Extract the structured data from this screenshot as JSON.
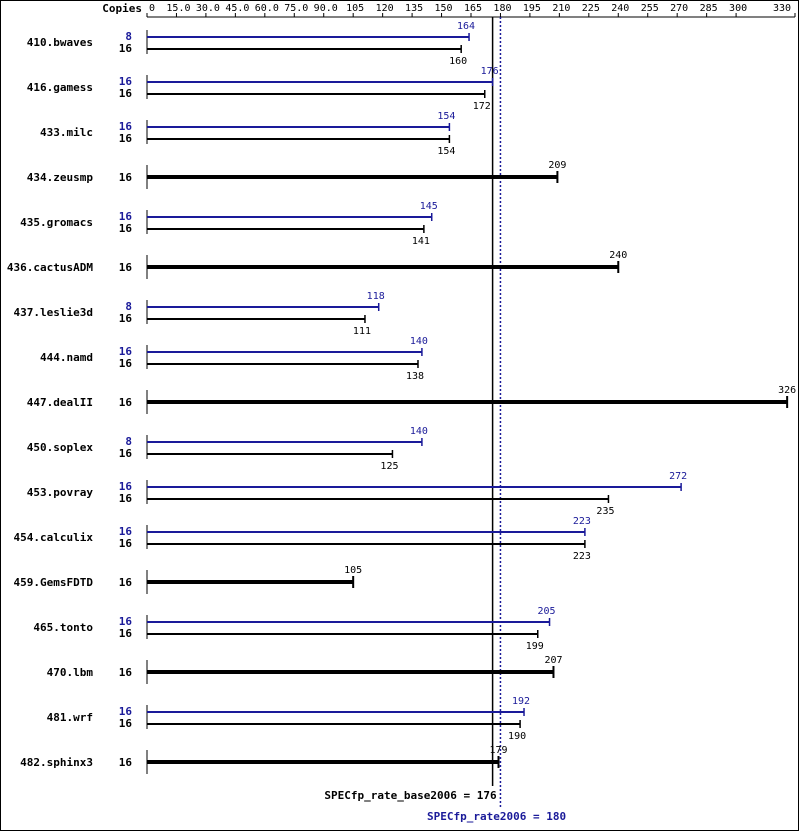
{
  "chart_data": {
    "type": "bar",
    "copies_header": "Copies",
    "categories": [
      "410.bwaves",
      "416.gamess",
      "433.milc",
      "434.zeusmp",
      "435.gromacs",
      "436.cactusADM",
      "437.leslie3d",
      "444.namd",
      "447.dealII",
      "450.soplex",
      "453.povray",
      "454.calculix",
      "459.GemsFDTD",
      "465.tonto",
      "470.lbm",
      "481.wrf",
      "482.sphinx3"
    ],
    "series": [
      {
        "color": "#1a1a99",
        "copies": [
          8,
          16,
          16,
          null,
          16,
          null,
          8,
          16,
          null,
          8,
          16,
          16,
          null,
          16,
          null,
          16,
          null
        ],
        "values": [
          164,
          176,
          154,
          null,
          145,
          null,
          118,
          140,
          null,
          140,
          272,
          223,
          null,
          205,
          null,
          192,
          null
        ]
      },
      {
        "color": "#000000",
        "copies": [
          16,
          16,
          16,
          16,
          16,
          16,
          16,
          16,
          16,
          16,
          16,
          16,
          16,
          16,
          16,
          16,
          16
        ],
        "values": [
          160,
          172,
          154,
          209,
          141,
          240,
          111,
          138,
          326,
          125,
          235,
          223,
          105,
          199,
          207,
          190,
          179
        ]
      }
    ],
    "xlim": [
      0,
      330
    ],
    "xticks": [
      0,
      {
        "value": 15,
        "label": "15.0"
      },
      {
        "value": 30,
        "label": "30.0"
      },
      {
        "value": 45,
        "label": "45.0"
      },
      {
        "value": 60,
        "label": "60.0"
      },
      {
        "value": 75,
        "label": "75.0"
      },
      {
        "value": 90,
        "label": "90.0"
      },
      105,
      120,
      135,
      150,
      165,
      180,
      195,
      210,
      225,
      240,
      255,
      270,
      285,
      300,
      330
    ],
    "base_line": {
      "value": 176,
      "label": "SPECfp_rate_base2006 = 176",
      "color": "#000000"
    },
    "peak_line": {
      "value": 180,
      "label": "SPECfp_rate2006 = 180",
      "color": "#1a1a99"
    }
  }
}
